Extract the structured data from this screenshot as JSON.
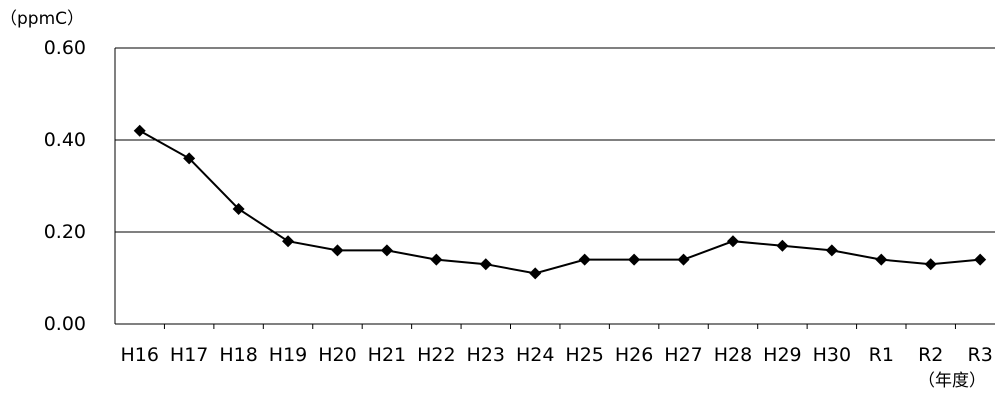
{
  "chart_data": {
    "type": "line",
    "title": "",
    "ylabel_unit": "（ppmC）",
    "xlabel_unit": "（年度）",
    "categories": [
      "H16",
      "H17",
      "H18",
      "H19",
      "H20",
      "H21",
      "H22",
      "H23",
      "H24",
      "H25",
      "H26",
      "H27",
      "H28",
      "H29",
      "H30",
      "R1",
      "R2",
      "R3"
    ],
    "series": [
      {
        "values": [
          0.42,
          0.36,
          0.25,
          0.18,
          0.16,
          0.16,
          0.14,
          0.13,
          0.11,
          0.14,
          0.14,
          0.14,
          0.18,
          0.17,
          0.16,
          0.14,
          0.13,
          0.14
        ]
      }
    ],
    "ylim": [
      0,
      0.6
    ],
    "yticks": [
      "0.00",
      "0.20",
      "0.40",
      "0.60"
    ],
    "grid": "horizontal",
    "legend": "none",
    "colors": {
      "line": "#000000",
      "grid": "#000000",
      "axis": "#000000"
    }
  }
}
